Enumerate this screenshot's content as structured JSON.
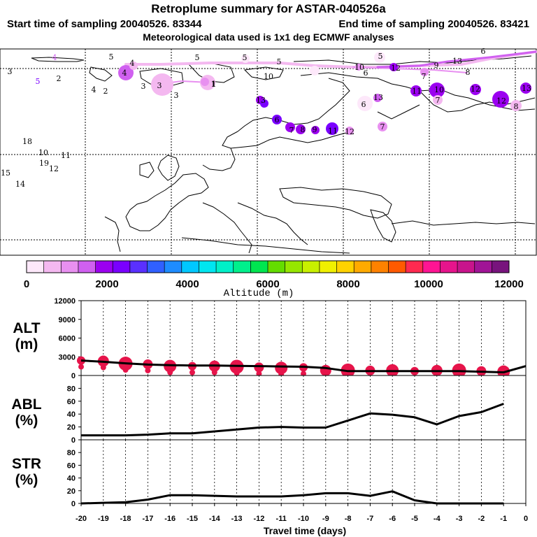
{
  "header": {
    "title": "Retroplume summary for ASTAR-040526a",
    "start_label": "Start time of sampling 20040526. 83344",
    "end_label": "End time of sampling 20040526. 83421",
    "met_label": "Meteorological data used is 1x1 deg ECMWF analyses"
  },
  "colorbar": {
    "label": "Altitude (m)",
    "tick_labels": [
      "0",
      "2000",
      "4000",
      "6000",
      "8000",
      "10000",
      "12000"
    ],
    "colors": [
      "#fde8fa",
      "#f4b8f0",
      "#e890f0",
      "#d060f0",
      "#9b00f0",
      "#7a00ff",
      "#5a30ff",
      "#3060ff",
      "#1e8cff",
      "#00c8ff",
      "#00e6f0",
      "#00f0c8",
      "#00f08c",
      "#00e650",
      "#64dc00",
      "#96e600",
      "#c8f000",
      "#f0f000",
      "#ffd200",
      "#ffaa00",
      "#ff8200",
      "#ff5a00",
      "#ff2a50",
      "#ff1493",
      "#e6148c",
      "#c8148c",
      "#a01496",
      "#78147d"
    ],
    "colors_count_note": "28 bins"
  },
  "map": {
    "labels": [
      {
        "t": "4",
        "c": "#d060f0"
      },
      {
        "t": "5",
        "c": "#000"
      },
      {
        "t": "4",
        "c": "#000"
      },
      {
        "t": "5",
        "c": "#000"
      },
      {
        "t": "5",
        "c": "#000"
      },
      {
        "t": "5",
        "c": "#000"
      },
      {
        "t": "6",
        "c": "#000"
      },
      {
        "t": "3",
        "c": "#000"
      },
      {
        "t": "5",
        "c": "#7a00ff"
      },
      {
        "t": "2",
        "c": "#000"
      },
      {
        "t": "4",
        "c": "#000"
      },
      {
        "t": "2",
        "c": "#000"
      },
      {
        "t": "3",
        "c": "#000"
      },
      {
        "t": "3",
        "c": "#000"
      },
      {
        "t": "1",
        "c": "#000"
      },
      {
        "t": "10",
        "c": "#000"
      },
      {
        "t": "5",
        "c": "#000"
      },
      {
        "t": "10",
        "c": "#000"
      },
      {
        "t": "12",
        "c": "#000"
      },
      {
        "t": "9",
        "c": "#000"
      },
      {
        "t": "13",
        "c": "#000"
      },
      {
        "t": "6",
        "c": "#000"
      },
      {
        "t": "7",
        "c": "#000"
      },
      {
        "t": "8",
        "c": "#000"
      },
      {
        "t": "12",
        "c": "#000"
      },
      {
        "t": "11",
        "c": "#000"
      },
      {
        "t": "10",
        "c": "#000"
      },
      {
        "t": "13",
        "c": "#000"
      },
      {
        "t": "13",
        "c": "#000"
      },
      {
        "t": "12",
        "c": "#000"
      },
      {
        "t": "18",
        "c": "#000"
      },
      {
        "t": "10",
        "c": "#000"
      },
      {
        "t": "11",
        "c": "#000"
      },
      {
        "t": "19",
        "c": "#000"
      },
      {
        "t": "12",
        "c": "#000"
      },
      {
        "t": "15",
        "c": "#000"
      },
      {
        "t": "14",
        "c": "#000"
      },
      {
        "t": "4",
        "c": "#000"
      },
      {
        "t": "3",
        "c": "#000"
      },
      {
        "t": "1",
        "c": "#000"
      },
      {
        "t": "6",
        "c": "#000"
      },
      {
        "t": "7",
        "c": "#000"
      },
      {
        "t": "8",
        "c": "#000"
      },
      {
        "t": "7",
        "c": "#000"
      },
      {
        "t": "13",
        "c": "#000"
      },
      {
        "t": "6",
        "c": "#000"
      },
      {
        "t": "7",
        "c": "#000"
      },
      {
        "t": "8",
        "c": "#000"
      },
      {
        "t": "9",
        "c": "#000"
      },
      {
        "t": "11",
        "c": "#000"
      },
      {
        "t": "12",
        "c": "#000"
      }
    ]
  },
  "chart_data": [
    {
      "type": "line",
      "id": "alt",
      "label": "ALT\n(m)",
      "label_line1": "ALT",
      "label_line2": "(m)",
      "x": [
        0,
        -1,
        -2,
        -3,
        -4,
        -5,
        -6,
        -7,
        -8,
        -9,
        -10,
        -11,
        -12,
        -13,
        -14,
        -15,
        -16,
        -17,
        -18,
        -19,
        -20
      ],
      "values": [
        1500,
        500,
        600,
        700,
        700,
        700,
        700,
        700,
        700,
        1200,
        1400,
        1450,
        1500,
        1550,
        1600,
        1600,
        1650,
        1750,
        1950,
        2200,
        2400
      ],
      "ylim": [
        0,
        12000
      ],
      "yticks": [
        0,
        3000,
        6000,
        9000,
        12000
      ],
      "ytick_labels": [
        "0",
        "3000",
        "6000",
        "9000",
        "12000"
      ],
      "xlim": [
        -20,
        0
      ],
      "scatter_color": "#e6144a",
      "scatter_x": [
        -20,
        -19,
        -18,
        -17,
        -16,
        -15,
        -14,
        -13,
        -12,
        -11,
        -10,
        -9,
        -8,
        -7,
        -6,
        -5,
        -4,
        -3,
        -2,
        -1
      ],
      "scatter_y": [
        2400,
        2300,
        1900,
        1800,
        1500,
        1500,
        1500,
        1400,
        1300,
        1200,
        1300,
        800,
        800,
        800,
        800,
        700,
        800,
        800,
        700,
        600
      ]
    },
    {
      "type": "line",
      "id": "abl",
      "label_line1": "ABL",
      "label_line2": "(%)",
      "x": [
        -20,
        -19,
        -18,
        -17,
        -16,
        -15,
        -14,
        -13,
        -12,
        -11,
        -10,
        -9,
        -8,
        -7,
        -6,
        -5,
        -4,
        -3,
        -2,
        -1
      ],
      "values": [
        7,
        7,
        7,
        8,
        10,
        10,
        13,
        16,
        19,
        20,
        19,
        19,
        30,
        41,
        39,
        35,
        24,
        37,
        43,
        56
      ],
      "ylim": [
        0,
        100
      ],
      "yticks": [
        0,
        20,
        40,
        60,
        80
      ],
      "ytick_labels": [
        "0",
        "20",
        "40",
        "60",
        "80"
      ],
      "xlim": [
        -20,
        0
      ]
    },
    {
      "type": "line",
      "id": "str",
      "label_line1": "STR",
      "label_line2": "(%)",
      "x": [
        -20,
        -19,
        -18,
        -17,
        -16,
        -15,
        -14,
        -13,
        -12,
        -11,
        -10,
        -9,
        -8,
        -7,
        -6,
        -5,
        -4,
        -3,
        -2,
        -1
      ],
      "values": [
        0,
        1,
        2,
        6,
        13,
        13,
        12,
        11,
        11,
        11,
        13,
        16,
        16,
        12,
        19,
        5,
        0,
        0,
        0,
        0
      ],
      "ylim": [
        0,
        100
      ],
      "yticks": [
        0,
        20,
        40,
        60,
        80
      ],
      "ytick_labels": [
        "0",
        "20",
        "40",
        "60",
        "80"
      ],
      "xlim": [
        -20,
        0
      ],
      "xticks": [
        -20,
        -19,
        -18,
        -17,
        -16,
        -15,
        -14,
        -13,
        -12,
        -11,
        -10,
        -9,
        -8,
        -7,
        -6,
        -5,
        -4,
        -3,
        -2,
        -1,
        0
      ],
      "xtick_labels": [
        "-20",
        "-19",
        "-18",
        "-17",
        "-16",
        "-15",
        "-14",
        "-13",
        "-12",
        "-11",
        "-10",
        "-9",
        "-8",
        "-7",
        "-6",
        "-5",
        "-4",
        "-3",
        "-2",
        "-1",
        "0"
      ],
      "xlabel": "Travel time (days)"
    }
  ]
}
